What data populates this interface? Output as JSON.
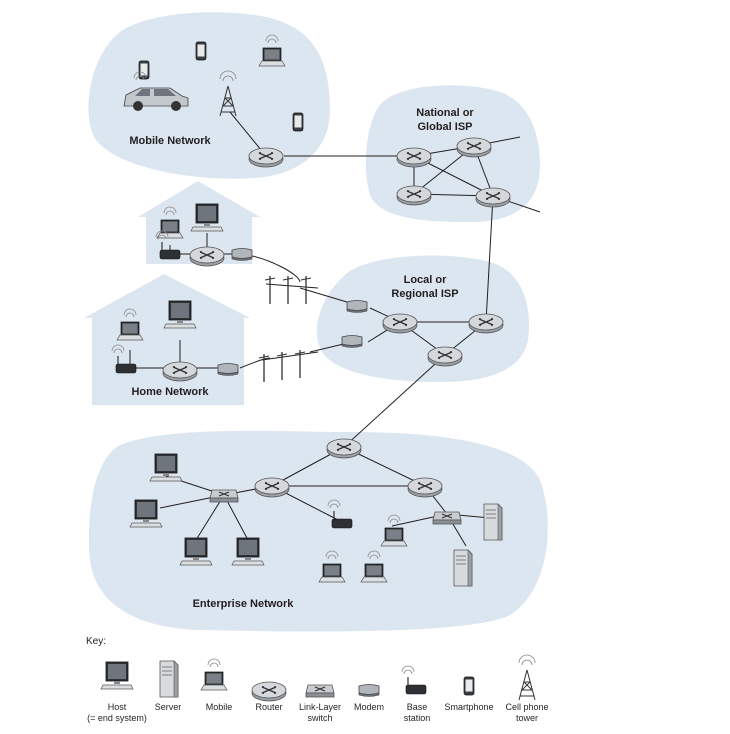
{
  "regions": {
    "mobile": "Mobile Network",
    "national_1": "National or",
    "national_2": "Global ISP",
    "local_1": "Local or",
    "local_2": "Regional ISP",
    "home": "Home Network",
    "enterprise": "Enterprise Network"
  },
  "key": {
    "title": "Key:",
    "host_1": "Host",
    "host_2": "(= end system)",
    "server": "Server",
    "mobile": "Mobile",
    "router": "Router",
    "switch_1": "Link-Layer",
    "switch_2": "switch",
    "modem": "Modem",
    "base_1": "Base",
    "base_2": "station",
    "smartphone": "Smartphone",
    "tower_1": "Cell phone",
    "tower_2": "tower"
  },
  "colors": {
    "region_fill": "#dce6f0",
    "router_fill": "#c8ccd0",
    "line": "#231f20"
  }
}
